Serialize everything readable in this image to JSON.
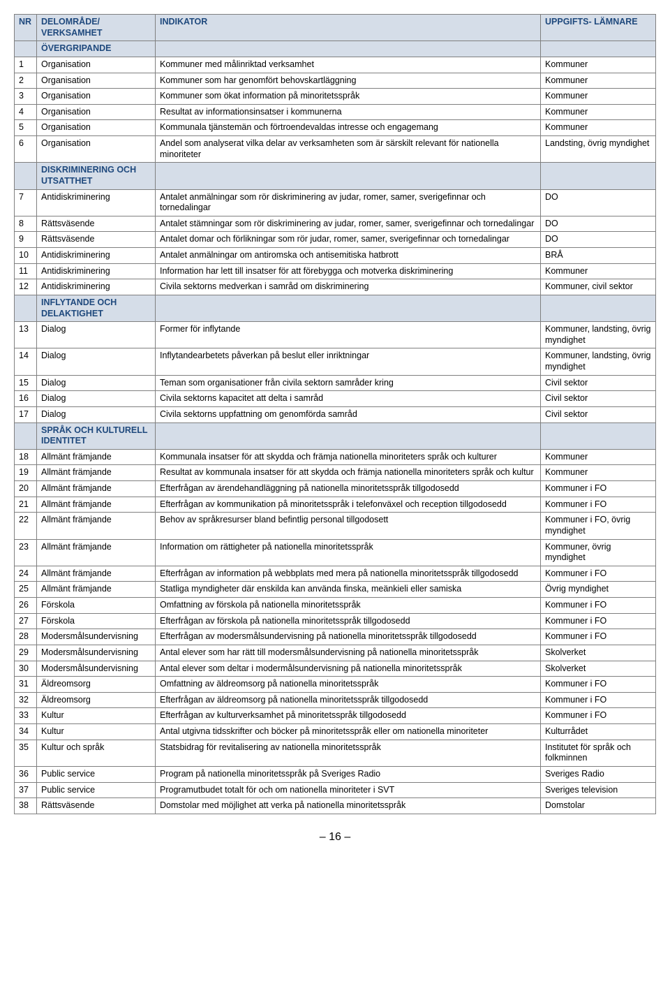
{
  "table": {
    "header_bg": "#d5dde8",
    "header_color": "#1f497d",
    "border_color": "#7f7f7f",
    "font_size_pt": 9,
    "columns": {
      "nr": "NR",
      "area": "DELOMRÅDE/\nVERKSAMHET",
      "ind": "INDIKATOR",
      "src": "UPPGIFTS-\nLÄMNARE"
    },
    "sections": [
      {
        "title": "ÖVERGRIPANDE",
        "rows": [
          {
            "nr": "1",
            "area": "Organisation",
            "ind": "Kommuner med målinriktad verksamhet",
            "src": "Kommuner"
          },
          {
            "nr": "2",
            "area": "Organisation",
            "ind": "Kommuner som har genomfört behovskartläggning",
            "src": "Kommuner"
          },
          {
            "nr": "3",
            "area": "Organisation",
            "ind": "Kommuner som ökat information på minoritetsspråk",
            "src": "Kommuner"
          },
          {
            "nr": "4",
            "area": "Organisation",
            "ind": "Resultat av informationsinsatser i kommunerna",
            "src": "Kommuner"
          },
          {
            "nr": "5",
            "area": "Organisation",
            "ind": "Kommunala tjänstemän och förtroendevaldas intresse och engagemang",
            "src": "Kommuner"
          },
          {
            "nr": "6",
            "area": "Organisation",
            "ind": "Andel som analyserat vilka delar av verksamheten som är särskilt relevant för nationella minoriteter",
            "src": "Landsting,\növrig myndighet"
          }
        ]
      },
      {
        "title": "DISKRIMINERING OCH UTSATTHET",
        "rows": [
          {
            "nr": "7",
            "area": "Antidiskriminering",
            "ind": "Antalet anmälningar som rör diskriminering av judar, romer, samer, sverigefinnar och tornedalingar",
            "src": "DO"
          },
          {
            "nr": "8",
            "area": "Rättsväsende",
            "ind": "Antalet stämningar som rör diskriminering av judar, romer, samer, sverigefinnar och tornedalingar",
            "src": "DO"
          },
          {
            "nr": "9",
            "area": "Rättsväsende",
            "ind": "Antalet domar och förlikningar som rör judar, romer, samer, sverigefinnar och tornedalingar",
            "src": "DO"
          },
          {
            "nr": "10",
            "area": "Antidiskriminering",
            "ind": "Antalet anmälningar om antiromska och antisemitiska hatbrott",
            "src": "BRÅ"
          },
          {
            "nr": "11",
            "area": "Antidiskriminering",
            "ind": "Information har lett till insatser för att förebygga och motverka diskriminering",
            "src": "Kommuner"
          },
          {
            "nr": "12",
            "area": "Antidiskriminering",
            "ind": "Civila sektorns medverkan i samråd om diskriminering",
            "src": "Kommuner, civil sektor"
          }
        ]
      },
      {
        "title": "INFLYTANDE OCH DELAKTIGHET",
        "rows": [
          {
            "nr": "13",
            "area": "Dialog",
            "ind": "Former för inflytande",
            "src": "Kommuner, landsting, övrig myndighet"
          },
          {
            "nr": "14",
            "area": "Dialog",
            "ind": "Inflytandearbetets påverkan på beslut eller inriktningar",
            "src": "Kommuner, landsting, övrig myndighet"
          },
          {
            "nr": "15",
            "area": "Dialog",
            "ind": "Teman som organisationer från civila sektorn samråder kring",
            "src": "Civil sektor"
          },
          {
            "nr": "16",
            "area": "Dialog",
            "ind": "Civila sektorns kapacitet att delta i samråd",
            "src": "Civil sektor"
          },
          {
            "nr": "17",
            "area": "Dialog",
            "ind": "Civila sektorns uppfattning om genomförda samråd",
            "src": "Civil sektor"
          }
        ]
      },
      {
        "title": "SPRÅK OCH KULTURELL IDENTITET",
        "rows": [
          {
            "nr": "18",
            "area": "Allmänt främjande",
            "ind": "Kommunala insatser för att skydda och främja nationella minoriteters språk och kulturer",
            "src": "Kommuner"
          },
          {
            "nr": "19",
            "area": "Allmänt främjande",
            "ind": "Resultat av kommunala insatser för att skydda och främja nationella minoriteters språk och kultur",
            "src": "Kommuner"
          },
          {
            "nr": "20",
            "area": "Allmänt främjande",
            "ind": "Efterfrågan av ärendehandläggning på nationella minoritetsspråk tillgodosedd",
            "src": "Kommuner i FO"
          },
          {
            "nr": "21",
            "area": "Allmänt främjande",
            "ind": "Efterfrågan av kommunikation på minoritetsspråk i telefonväxel och reception tillgodosedd",
            "src": "Kommuner i FO"
          },
          {
            "nr": "22",
            "area": "Allmänt främjande",
            "ind": "Behov av språkresurser bland befintlig personal tillgodosett",
            "src": "Kommuner i FO, övrig myndighet"
          },
          {
            "nr": "23",
            "area": "Allmänt främjande",
            "ind": "Information om rättigheter på nationella minoritetsspråk",
            "src": "Kommuner,\növrig myndighet"
          },
          {
            "nr": "24",
            "area": "Allmänt främjande",
            "ind": "Efterfrågan av information på webbplats med mera på nationella minoritetsspråk tillgodosedd",
            "src": "Kommuner i FO"
          },
          {
            "nr": "25",
            "area": "Allmänt främjande",
            "ind": "Statliga myndigheter där enskilda kan använda finska, meänkieli eller samiska",
            "src": "Övrig myndighet"
          },
          {
            "nr": "26",
            "area": "Förskola",
            "ind": "Omfattning av förskola på nationella minoritetsspråk",
            "src": "Kommuner i FO"
          },
          {
            "nr": "27",
            "area": "Förskola",
            "ind": "Efterfrågan av förskola på nationella minoritetsspråk tillgodosedd",
            "src": "Kommuner i FO"
          },
          {
            "nr": "28",
            "area": "Modersmålsundervisning",
            "ind": "Efterfrågan av modersmålsundervisning på nationella minoritetsspråk tillgodosedd",
            "src": "Kommuner i FO"
          },
          {
            "nr": "29",
            "area": "Modersmålsundervisning",
            "ind": "Antal elever som har rätt till modersmålsundervisning på nationella minoritetsspråk",
            "src": "Skolverket"
          },
          {
            "nr": "30",
            "area": "Modersmålsundervisning",
            "ind": "Antal elever som deltar i modermålsundervisning på nationella minoritetsspråk",
            "src": "Skolverket"
          },
          {
            "nr": "31",
            "area": "Äldreomsorg",
            "ind": "Omfattning av äldreomsorg på nationella minoritetsspråk",
            "src": "Kommuner i FO"
          },
          {
            "nr": "32",
            "area": "Äldreomsorg",
            "ind": "Efterfrågan av äldreomsorg på nationella minoritetsspråk tillgodosedd",
            "src": "Kommuner i FO"
          },
          {
            "nr": "33",
            "area": "Kultur",
            "ind": "Efterfrågan av kulturverksamhet på minoritetsspråk tillgodosedd",
            "src": "Kommuner i FO"
          },
          {
            "nr": "34",
            "area": "Kultur",
            "ind": "Antal utgivna tidsskrifter och böcker på minoritetsspråk eller om nationella minoriteter",
            "src": "Kulturrådet"
          },
          {
            "nr": "35",
            "area": "Kultur och språk",
            "ind": "Statsbidrag för revitalisering av nationella minoritetsspråk",
            "src": "Institutet för språk och folkminnen"
          },
          {
            "nr": "36",
            "area": "Public service",
            "ind": "Program på nationella minoritetsspråk på Sveriges Radio",
            "src": "Sveriges Radio"
          },
          {
            "nr": "37",
            "area": "Public service",
            "ind": "Programutbudet totalt för och om nationella minoriteter i SVT",
            "src": "Sveriges television"
          },
          {
            "nr": "38",
            "area": "Rättsväsende",
            "ind": "Domstolar med möjlighet att verka på nationella minoritetsspråk",
            "src": "Domstolar"
          }
        ]
      }
    ]
  },
  "page_number": "– 16 –"
}
